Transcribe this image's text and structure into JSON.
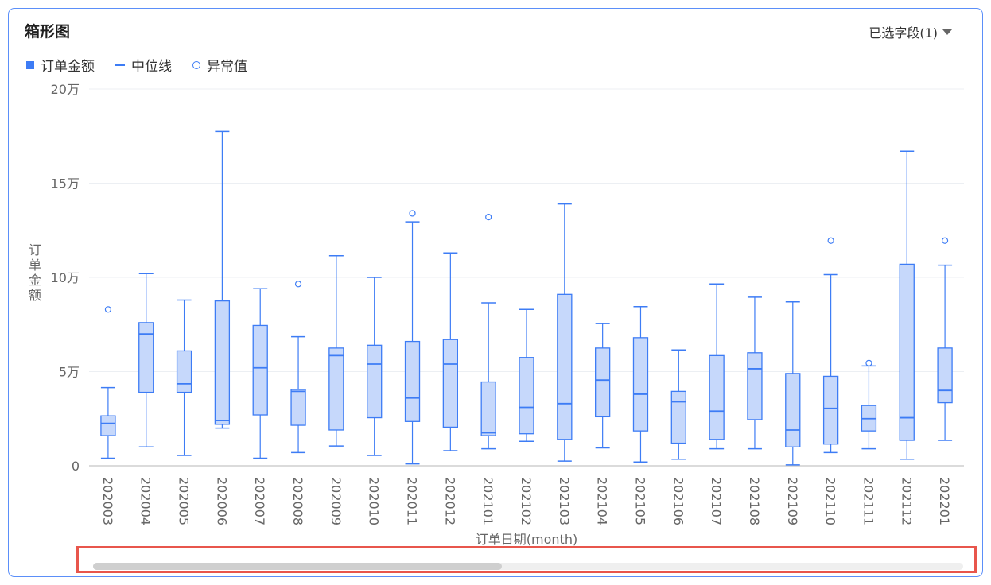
{
  "header": {
    "title": "箱形图",
    "field_selector": "已选字段(1)"
  },
  "legend": [
    {
      "label": "订单金额",
      "marker": "square"
    },
    {
      "label": "中位线",
      "marker": "line"
    },
    {
      "label": "异常值",
      "marker": "circle"
    }
  ],
  "colors": {
    "box_fill": "#c6d8fb",
    "box_stroke": "#3d7cf5",
    "grid": "#eceff3",
    "axis": "#cfcfcf"
  },
  "chart_data": {
    "type": "box",
    "title": "箱形图",
    "xlabel": "订单日期(month)",
    "ylabel": "订单金额",
    "ylim": [
      0,
      200000
    ],
    "ytick_values": [
      0,
      50000,
      100000,
      150000,
      200000
    ],
    "ytick_labels": [
      "0",
      "5万",
      "10万",
      "15万",
      "20万"
    ],
    "categories": [
      "202003",
      "202004",
      "202005",
      "202006",
      "202007",
      "202008",
      "202009",
      "202010",
      "202011",
      "202012",
      "202101",
      "202102",
      "202103",
      "202104",
      "202105",
      "202106",
      "202107",
      "202108",
      "202109",
      "202110",
      "202111",
      "202112",
      "202201"
    ],
    "series": [
      {
        "name": "订单金额",
        "min": [
          4000,
          10000,
          5500,
          20000,
          4000,
          7000,
          10500,
          5500,
          1000,
          8000,
          9000,
          13000,
          2500,
          9500,
          2000,
          3500,
          9000,
          9000,
          500,
          7000,
          9000,
          3500,
          13500
        ],
        "q1": [
          16000,
          39000,
          39000,
          22000,
          27000,
          21500,
          19000,
          25500,
          23500,
          20500,
          16000,
          17000,
          14000,
          26000,
          18500,
          12000,
          14000,
          24500,
          10000,
          11500,
          18500,
          13500,
          33500
        ],
        "median": [
          22500,
          70000,
          43500,
          24000,
          52000,
          39500,
          58500,
          54000,
          36000,
          54000,
          17500,
          31000,
          33000,
          45500,
          38000,
          34000,
          29000,
          51500,
          19000,
          30500,
          25000,
          25500,
          40000
        ],
        "q3": [
          26500,
          76000,
          61000,
          87500,
          74500,
          40500,
          62500,
          64000,
          66000,
          67000,
          44500,
          57500,
          91000,
          62500,
          68000,
          39500,
          58500,
          60000,
          49000,
          47500,
          32000,
          107000,
          62500
        ],
        "max": [
          41500,
          102000,
          88000,
          177500,
          94000,
          68500,
          111500,
          100000,
          129500,
          113000,
          86500,
          83000,
          139000,
          75500,
          84500,
          61500,
          96500,
          89500,
          87000,
          101500,
          53000,
          167000,
          106500
        ],
        "outliers": [
          [
            83000
          ],
          [],
          [],
          [],
          [],
          [
            96500
          ],
          [],
          [],
          [
            134000
          ],
          [],
          [
            132000
          ],
          [],
          [],
          [],
          [],
          [],
          [],
          [],
          [],
          [
            119500
          ],
          [
            54500
          ],
          [],
          [
            119500
          ]
        ]
      }
    ]
  },
  "scrollbar": {
    "thumb_fraction": 0.47
  }
}
